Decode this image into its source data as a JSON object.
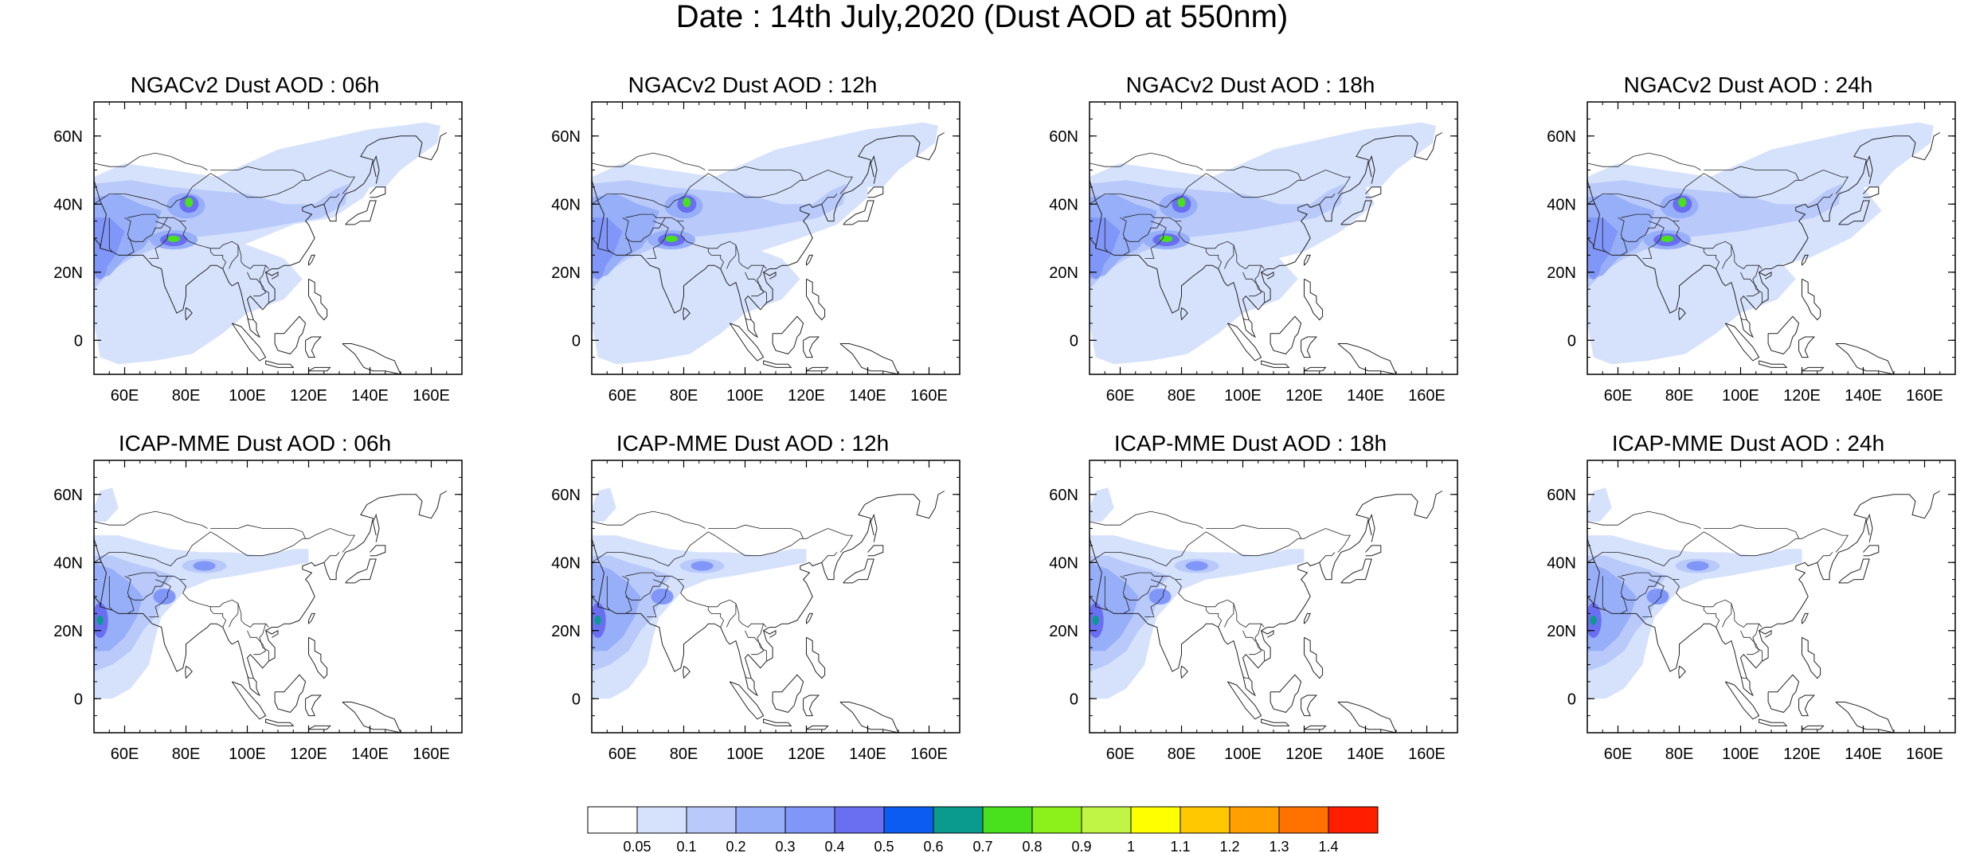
{
  "main_title": "Date : 14th July,2020 (Dust AOD at 550nm)",
  "map_axes": {
    "lat_ticks": [
      "60N",
      "40N",
      "20N",
      "0"
    ],
    "lon_ticks": [
      "60E",
      "80E",
      "100E",
      "120E",
      "140E",
      "160E"
    ],
    "lat_values": [
      60,
      40,
      20,
      0
    ],
    "lon_values": [
      60,
      80,
      100,
      120,
      140,
      160
    ],
    "lon_range": [
      50,
      170
    ],
    "lat_range": [
      -10,
      70
    ]
  },
  "panels": [
    {
      "title": "NGACv2 Dust AOD : 06h",
      "model": "NGACv2",
      "hour": "06h"
    },
    {
      "title": "NGACv2 Dust AOD : 12h",
      "model": "NGACv2",
      "hour": "12h"
    },
    {
      "title": "NGACv2 Dust AOD : 18h",
      "model": "NGACv2",
      "hour": "18h"
    },
    {
      "title": "NGACv2 Dust AOD : 24h",
      "model": "NGACv2",
      "hour": "24h"
    },
    {
      "title": "ICAP-MME Dust AOD : 06h",
      "model": "ICAP-MME",
      "hour": "06h"
    },
    {
      "title": "ICAP-MME Dust AOD : 12h",
      "model": "ICAP-MME",
      "hour": "12h"
    },
    {
      "title": "ICAP-MME Dust AOD : 18h",
      "model": "ICAP-MME",
      "hour": "18h"
    },
    {
      "title": "ICAP-MME Dust AOD : 24h",
      "model": "ICAP-MME",
      "hour": "24h"
    }
  ],
  "colorbar": {
    "labels": [
      "0.05",
      "0.1",
      "0.2",
      "0.3",
      "0.4",
      "0.5",
      "0.6",
      "0.7",
      "0.8",
      "0.9",
      "1",
      "1.1",
      "1.2",
      "1.3",
      "1.4"
    ],
    "colors": [
      "#ffffff",
      "#d6e2fc",
      "#b9c9fa",
      "#97aef9",
      "#8096f8",
      "#6a6ff2",
      "#0d5cf2",
      "#0b9a8e",
      "#49e01d",
      "#8cf01a",
      "#c0f546",
      "#ffff00",
      "#ffc800",
      "#ffa000",
      "#ff7200",
      "#ff1e00"
    ]
  }
}
